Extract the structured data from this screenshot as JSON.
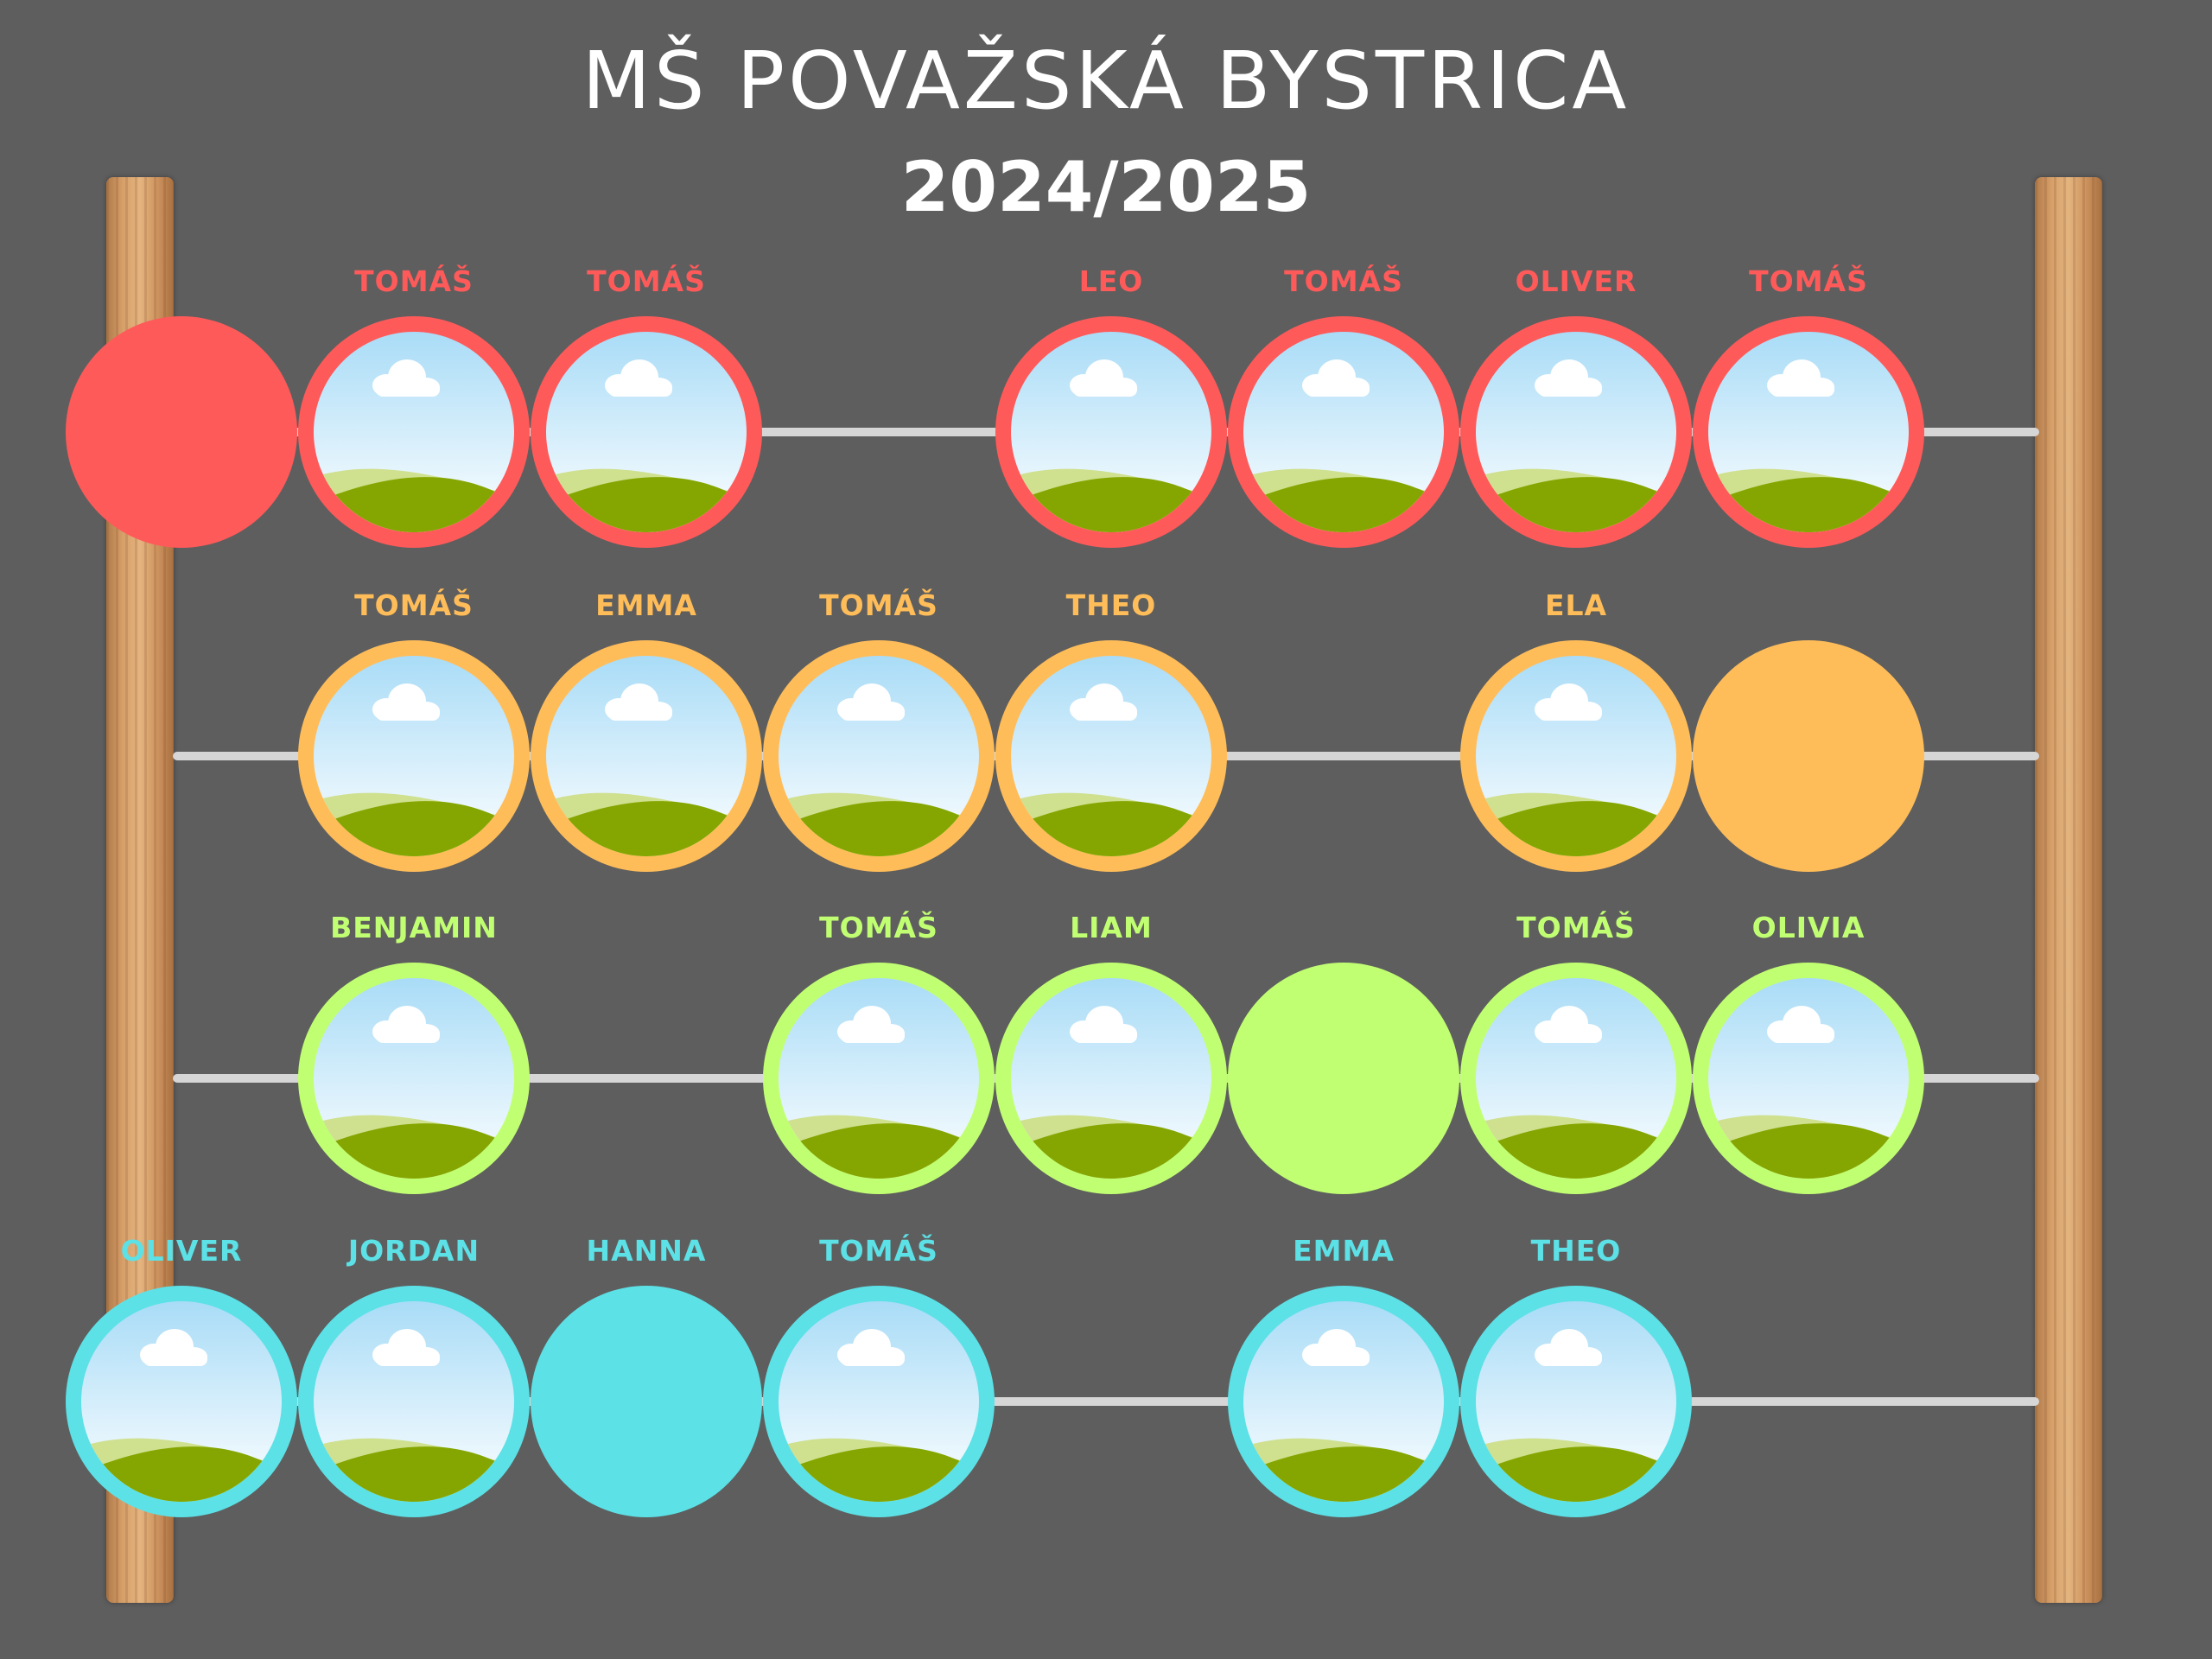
{
  "header": {
    "title": "MŠ POVAŽSKÁ BYSTRICA",
    "year": "2024/2025"
  },
  "colors": {
    "background": "#5e5e5e",
    "rows": [
      "#ff5a5a",
      "#ffbd59",
      "#c1ff72",
      "#5ce1e6"
    ],
    "rail": "#d6d6d6"
  },
  "icons": {
    "photo_placeholder": "landscape-photo-icon"
  },
  "rows": [
    {
      "beads": [
        {
          "slot": 0,
          "name": "",
          "photo": false
        },
        {
          "slot": 1,
          "name": "TOMÁŠ",
          "photo": true
        },
        {
          "slot": 2,
          "name": "TOMÁŠ",
          "photo": true
        },
        {
          "slot": 4,
          "name": "LEO",
          "photo": true
        },
        {
          "slot": 5,
          "name": "TOMÁŠ",
          "photo": true
        },
        {
          "slot": 6,
          "name": "OLIVER",
          "photo": true
        },
        {
          "slot": 7,
          "name": "TOMÁŠ",
          "photo": true
        }
      ]
    },
    {
      "beads": [
        {
          "slot": 1,
          "name": "TOMÁŠ",
          "photo": true
        },
        {
          "slot": 2,
          "name": "EMMA",
          "photo": true
        },
        {
          "slot": 3,
          "name": "TOMÁŠ",
          "photo": true
        },
        {
          "slot": 4,
          "name": "THEO",
          "photo": true
        },
        {
          "slot": 6,
          "name": "ELA",
          "photo": true
        },
        {
          "slot": 7,
          "name": "",
          "photo": false
        }
      ]
    },
    {
      "beads": [
        {
          "slot": 1,
          "name": "BENJAMIN",
          "photo": true
        },
        {
          "slot": 3,
          "name": "TOMÁŠ",
          "photo": true
        },
        {
          "slot": 4,
          "name": "LIAM",
          "photo": true
        },
        {
          "slot": 5,
          "name": "",
          "photo": false
        },
        {
          "slot": 6,
          "name": "TOMÁŠ",
          "photo": true
        },
        {
          "slot": 7,
          "name": "OLIVIA",
          "photo": true
        }
      ]
    },
    {
      "beads": [
        {
          "slot": 0,
          "name": "OLIVER",
          "photo": true
        },
        {
          "slot": 1,
          "name": "JORDAN",
          "photo": true
        },
        {
          "slot": 2,
          "name": "HANNA",
          "photo": false
        },
        {
          "slot": 3,
          "name": "TOMÁŠ",
          "photo": true
        },
        {
          "slot": 5,
          "name": "EMMA",
          "photo": true
        },
        {
          "slot": 6,
          "name": "THEO",
          "photo": true
        }
      ]
    }
  ]
}
